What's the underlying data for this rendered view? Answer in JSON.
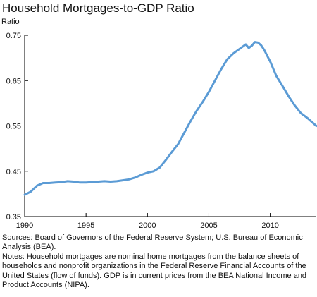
{
  "chart_data": {
    "type": "line",
    "title": "Household Mortgages-to-GDP Ratio",
    "ylabel": "Ratio",
    "xlabel": "",
    "ylim": [
      0.35,
      0.75
    ],
    "yticks": [
      "0.75",
      "0.65",
      "0.55",
      "0.45",
      "0.35"
    ],
    "xlim": [
      1990,
      2013.75
    ],
    "xticks": [
      "1990",
      "1995",
      "2000",
      "2005",
      "2010"
    ],
    "grid": false,
    "colors": {
      "line": "#5b9bd5",
      "axis": "#000000"
    },
    "series": [
      {
        "x": [
          1990,
          1990.5,
          1991,
          1991.5,
          1992,
          1992.5,
          1993,
          1993.5,
          1994,
          1994.5,
          1995,
          1995.5,
          1996,
          1996.5,
          1997,
          1997.5,
          1998,
          1998.5,
          1999,
          1999.5,
          2000,
          2000.5,
          2001,
          2001.5,
          2002,
          2002.5,
          2003,
          2003.5,
          2004,
          2004.5,
          2005,
          2005.5,
          2006,
          2006.5,
          2007,
          2007.5,
          2008,
          2008.25,
          2008.5,
          2008.75,
          2009,
          2009.25,
          2009.5,
          2010,
          2010.5,
          2011,
          2011.5,
          2012,
          2012.5,
          2013,
          2013.75
        ],
        "values": [
          0.398,
          0.405,
          0.418,
          0.424,
          0.424,
          0.425,
          0.426,
          0.428,
          0.427,
          0.425,
          0.425,
          0.426,
          0.427,
          0.428,
          0.427,
          0.428,
          0.43,
          0.432,
          0.436,
          0.442,
          0.447,
          0.45,
          0.458,
          0.475,
          0.493,
          0.51,
          0.535,
          0.56,
          0.583,
          0.603,
          0.625,
          0.65,
          0.675,
          0.697,
          0.71,
          0.72,
          0.73,
          0.722,
          0.727,
          0.735,
          0.734,
          0.728,
          0.718,
          0.692,
          0.66,
          0.638,
          0.615,
          0.595,
          0.578,
          0.568,
          0.55
        ]
      }
    ]
  },
  "footer": {
    "sources": "Sources: Board of Governors of the Federal Reserve System; U.S. Bureau of Economic Analysis (BEA).",
    "notes": "Notes: Household mortgages are nominal home mortgages from the balance sheets of households and nonprofit organizations in the Federal Reserve Financial Accounts of the United States (flow of funds). GDP is in current prices from the BEA National Income and Product Accounts (NIPA)."
  }
}
